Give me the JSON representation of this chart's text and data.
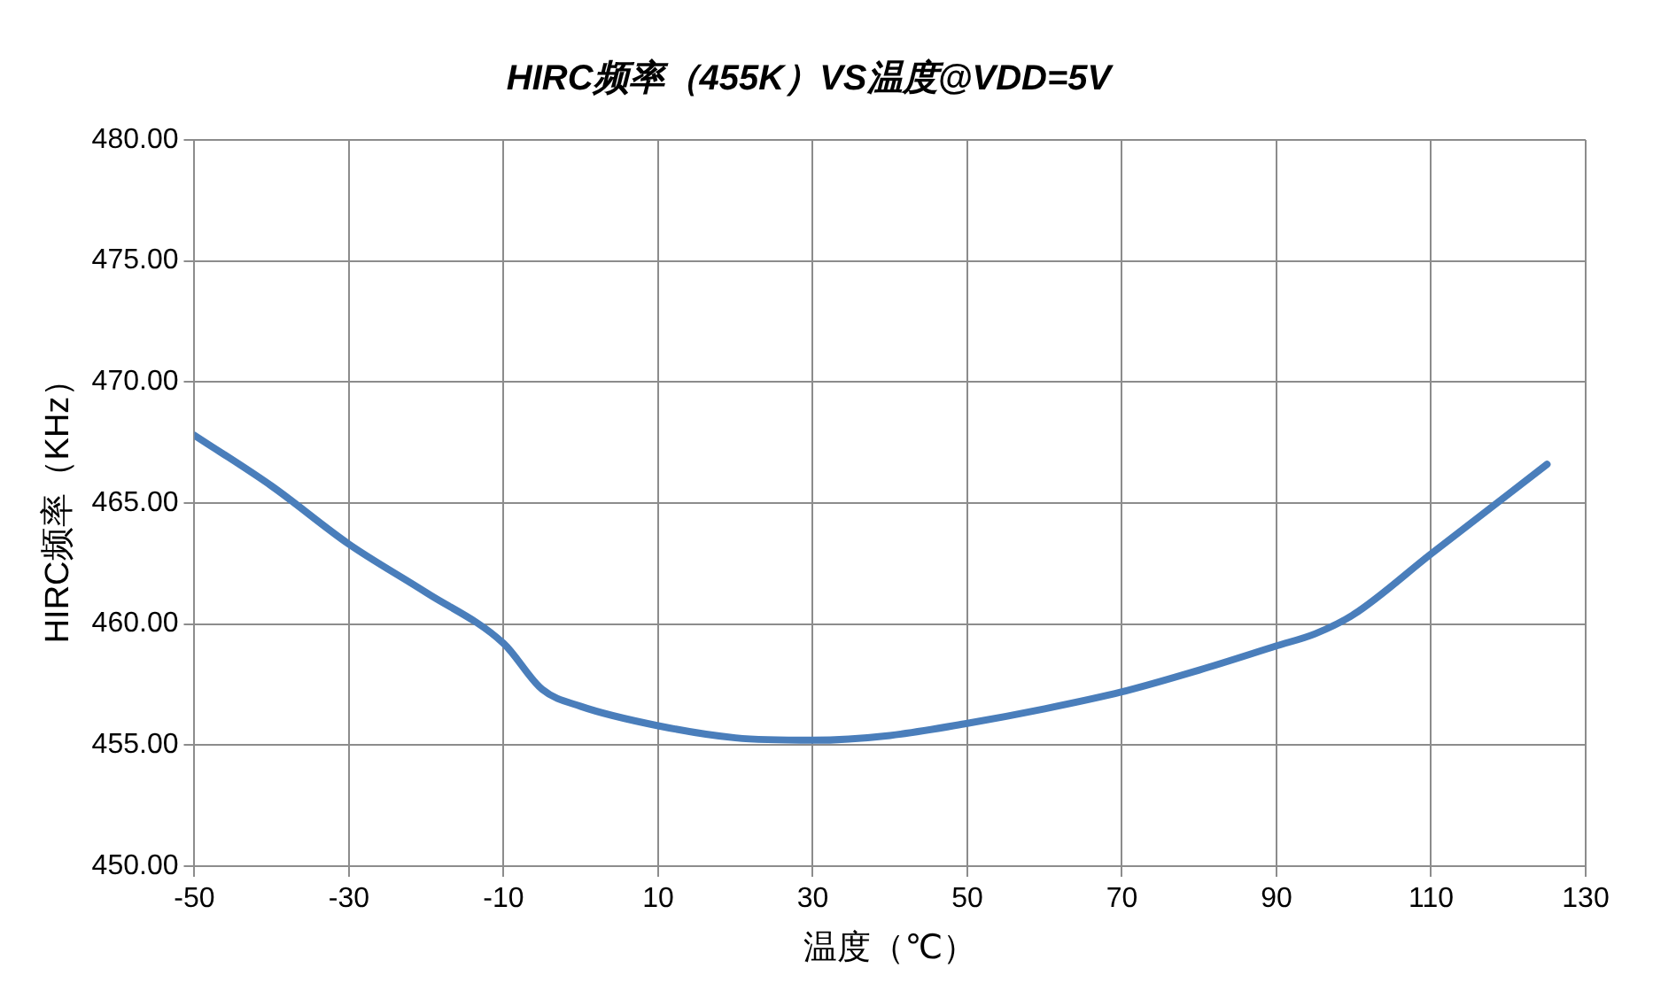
{
  "chart_data": {
    "type": "line",
    "title": "HIRC频率（455K）VS温度@VDD=5V",
    "xlabel": "温度（℃）",
    "ylabel": "HIRC频率（KHz）",
    "x": [
      -50,
      -40,
      -30,
      -20,
      -10,
      -5,
      0,
      10,
      20,
      30,
      40,
      50,
      60,
      70,
      80,
      90,
      95,
      100,
      110,
      125
    ],
    "series": [
      {
        "color": "#4a7ebb",
        "values": [
          467.8,
          465.7,
          463.3,
          461.3,
          459.2,
          457.3,
          456.6,
          455.8,
          455.3,
          455.2,
          455.4,
          455.9,
          456.5,
          457.2,
          458.1,
          459.1,
          459.6,
          460.4,
          462.9,
          466.6
        ]
      }
    ],
    "xlim": [
      -50,
      130
    ],
    "xticks": [
      -50,
      -30,
      -10,
      10,
      30,
      50,
      70,
      90,
      110,
      130
    ],
    "ylim": [
      450,
      480
    ],
    "yticks": [
      {
        "value": 450,
        "label": "450.00"
      },
      {
        "value": 455,
        "label": "455.00"
      },
      {
        "value": 460,
        "label": "460.00"
      },
      {
        "value": 465,
        "label": "465.00"
      },
      {
        "value": 470,
        "label": "470.00"
      },
      {
        "value": 475,
        "label": "475.00"
      },
      {
        "value": 480,
        "label": "480.00"
      }
    ],
    "grid": true,
    "legend": false,
    "marker": "none",
    "line_style": "solid"
  }
}
